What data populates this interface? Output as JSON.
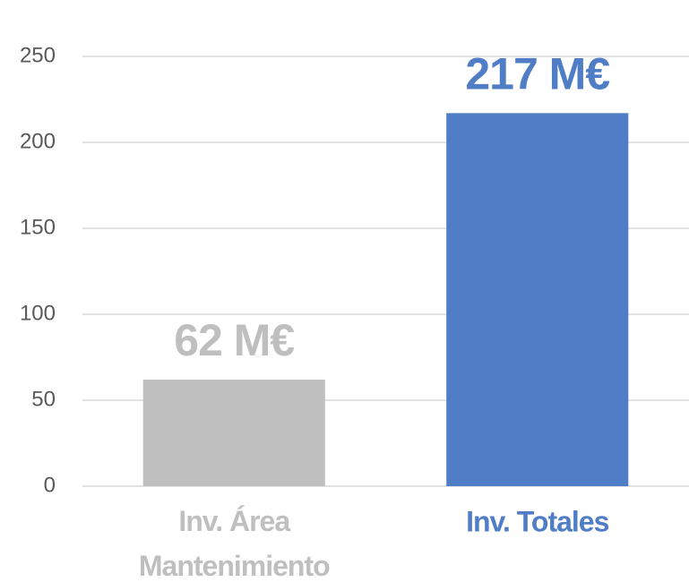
{
  "chart_data": {
    "type": "bar",
    "categories": [
      "Inv. Área Mantenimiento",
      "Inv. Totales"
    ],
    "values": [
      62,
      217
    ],
    "value_labels": [
      "62 M€",
      "217 M€"
    ],
    "colors": [
      "#bfbfbf",
      "#4f7dc6"
    ],
    "ylim": [
      0,
      250
    ],
    "yticks": [
      0,
      50,
      100,
      150,
      200,
      250
    ],
    "grid": true
  }
}
